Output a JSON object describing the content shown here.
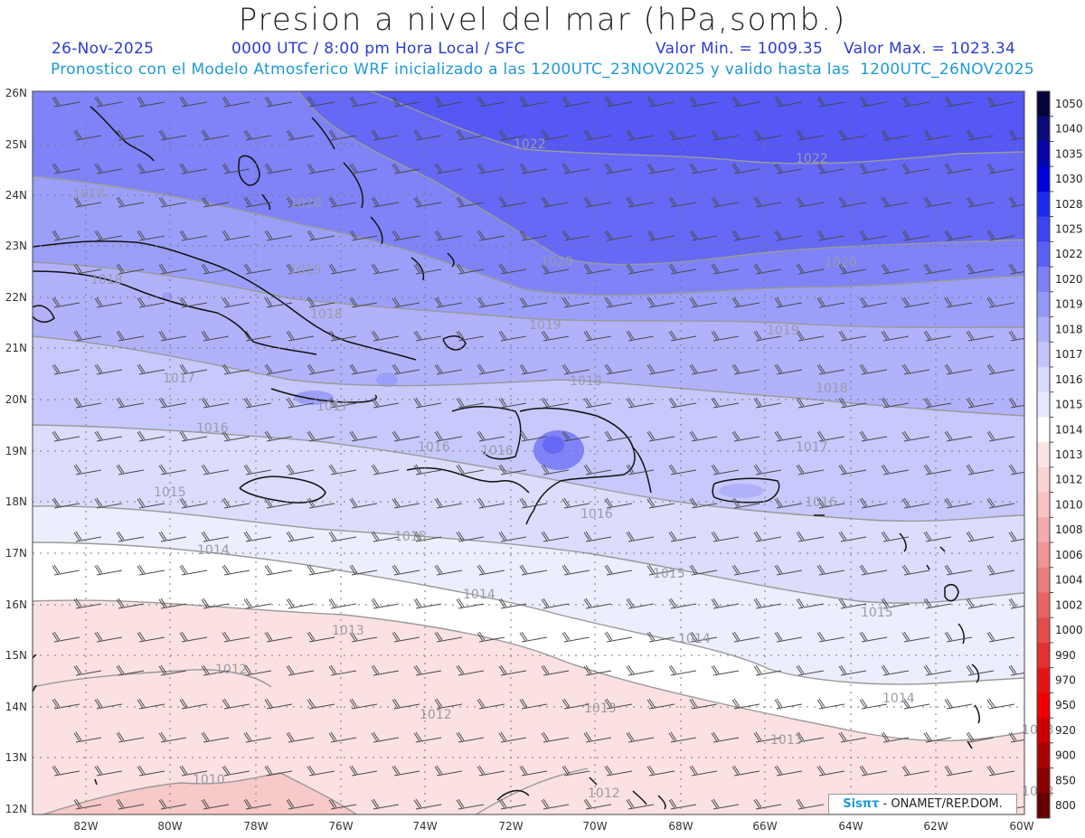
{
  "header": {
    "title": "Presion a nivel del mar (hPa,somb.)",
    "date": "26-Nov-2025",
    "time": "0000 UTC / 8:00 pm Hora Local / SFC",
    "min_label": "Valor Min. = 1009.35",
    "max_label": "Valor Max. = 1023.34",
    "forecast": "Pronostico con el Modelo Atmosferico WRF inicializado a las 1200UTC_23NOV2025 y valido hasta las  1200UTC_26NOV2025"
  },
  "axes": {
    "lat_labels": [
      "26N",
      "25N",
      "24N",
      "23N",
      "22N",
      "21N",
      "20N",
      "19N",
      "18N",
      "17N",
      "16N",
      "15N",
      "14N",
      "13N",
      "12N"
    ],
    "lon_labels": [
      "82W",
      "80W",
      "78W",
      "76W",
      "74W",
      "72W",
      "70W",
      "68W",
      "66W",
      "64W",
      "62W",
      "60W"
    ]
  },
  "contour_labels": [
    "1022",
    "1022",
    "1020",
    "1020",
    "1020",
    "1019",
    "1019",
    "1019",
    "1018",
    "1018",
    "1018",
    "1018",
    "1017",
    "1017",
    "1017",
    "1016",
    "1016",
    "1016",
    "1016",
    "1016",
    "1015",
    "1015",
    "1015",
    "1015",
    "1014",
    "1014",
    "1014",
    "1014",
    "1013",
    "1013",
    "1013",
    "1013",
    "1012",
    "1012",
    "1012",
    "1012",
    "1010",
    "1018"
  ],
  "colorbar": {
    "levels": [
      "1050",
      "1040",
      "1035",
      "1030",
      "1028",
      "1025",
      "1022",
      "1020",
      "1019",
      "1018",
      "1017",
      "1016",
      "1015",
      "1014",
      "1013",
      "1012",
      "1010",
      "1008",
      "1006",
      "1004",
      "1002",
      "1000",
      "990",
      "970",
      "950",
      "920",
      "900",
      "850",
      "800"
    ],
    "colors": [
      "#05053a",
      "#0a0a7a",
      "#0505aa",
      "#0000dd",
      "#1a2aee",
      "#3a45f0",
      "#5a5ff6",
      "#7b80f8",
      "#9498f8",
      "#aeb0fa",
      "#c4c6fb",
      "#d8d9fc",
      "#e7e8fd",
      "#ffffff",
      "#fbe3e3",
      "#f9d2d2",
      "#f6c2c2",
      "#f3aaaa",
      "#f09494",
      "#ec7c7c",
      "#e86464",
      "#e44c4c",
      "#e33030",
      "#e41414",
      "#ee0000",
      "#cc0000",
      "#aa0000",
      "#880000",
      "#660000"
    ]
  },
  "credit": {
    "sis": "Sisπτ",
    "org": "- ONAMET/REP.DOM."
  }
}
